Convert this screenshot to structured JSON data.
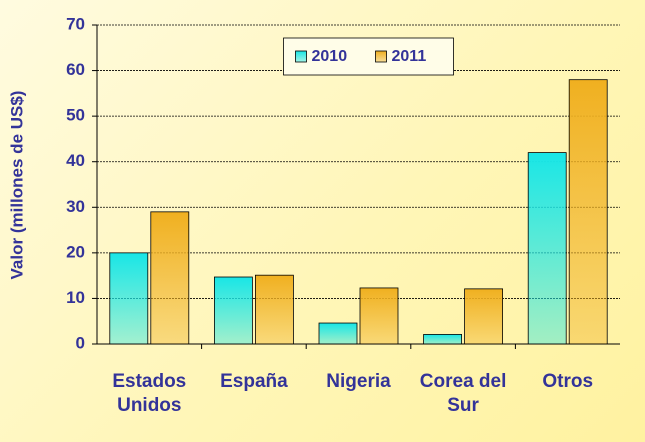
{
  "chart_data": {
    "type": "bar",
    "y_label": "Valor (millones de US$)",
    "categories": [
      "Estados Unidos",
      "España",
      "Nigeria",
      "Corea del Sur",
      "Otros"
    ],
    "series": [
      {
        "name": "2010",
        "color": "#19e6e6",
        "values": [
          20,
          14.7,
          4.6,
          2.1,
          42
        ]
      },
      {
        "name": "2011",
        "color": "#f0b020",
        "values": [
          29,
          15.1,
          12.3,
          12.1,
          58
        ]
      }
    ],
    "ylim": [
      0,
      70
    ],
    "yticks": [
      0,
      10,
      20,
      30,
      40,
      50,
      60,
      70
    ],
    "grid": true,
    "legend": "top"
  }
}
